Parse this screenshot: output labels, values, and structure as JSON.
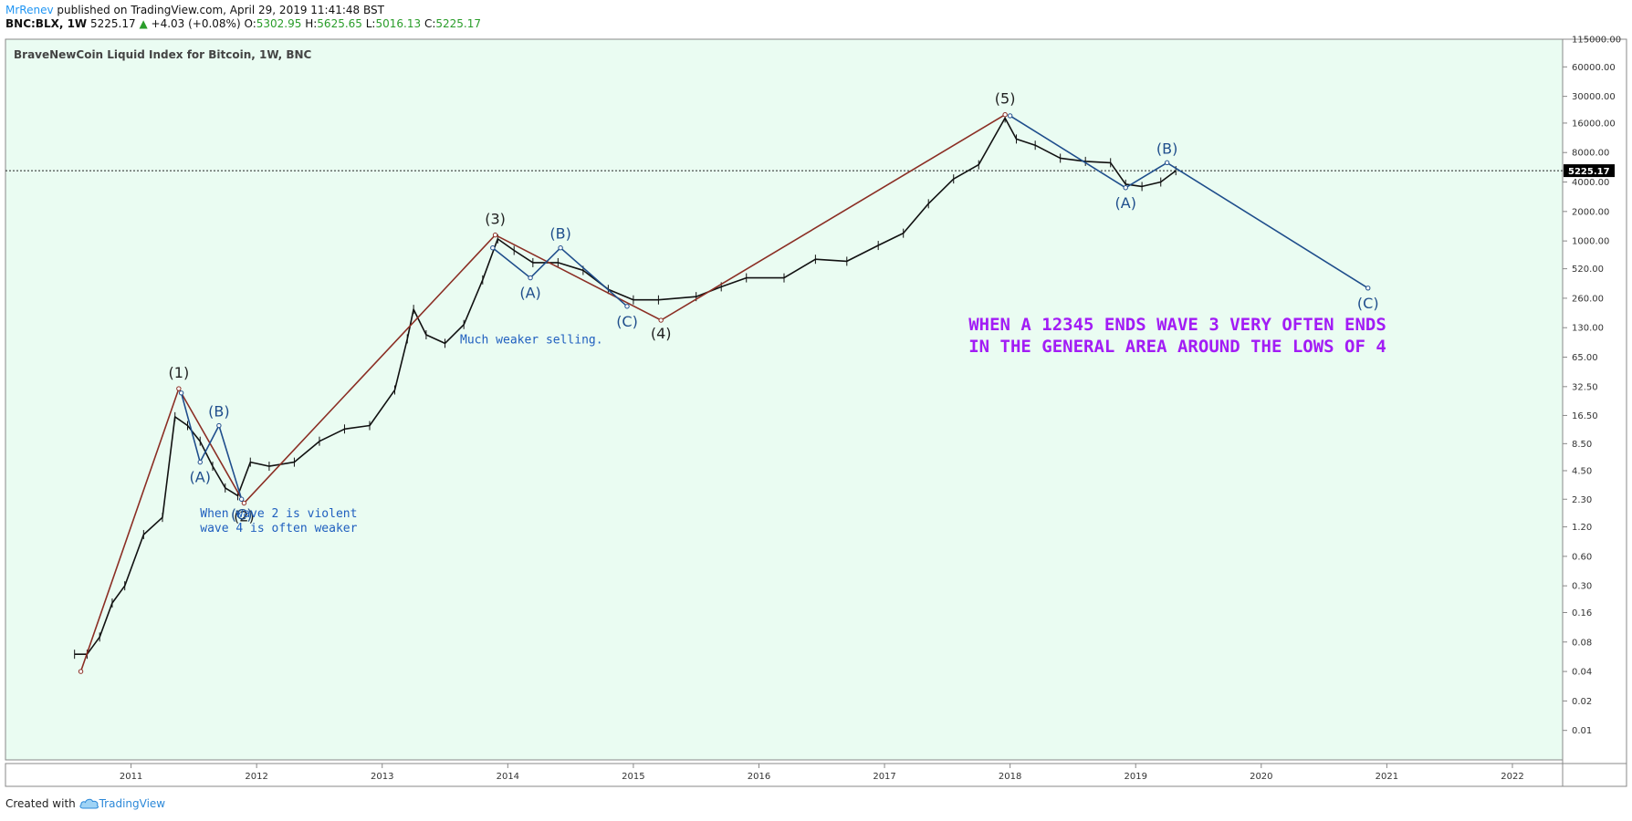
{
  "header": {
    "author": "MrRenev",
    "published": " published on TradingView.com, April 29, 2019 11:41:48 BST",
    "symbol": "BNC:BLX, 1W",
    "last": "5225.17",
    "change": "+4.03 (+0.08%)",
    "o_label": "O:",
    "o_value": "5302.95",
    "h_label": "H:",
    "h_value": "5625.65",
    "l_label": "L:",
    "l_value": "5016.13",
    "c_label": "C:",
    "c_value": "5225.17"
  },
  "footer": {
    "created_with": "Created with",
    "brand": "TradingView"
  },
  "colors": {
    "background": "#eafcf2",
    "impulse": "#8b2e24",
    "correction": "#1f4e8c",
    "note_text": "#1f5fbf",
    "headline_text": "#a21cf5",
    "price_tag": "#000000"
  },
  "chart_data": {
    "type": "line",
    "title": "BraveNewCoin Liquid Index for Bitcoin, 1W, BNC",
    "y_scale": "log",
    "ylim": [
      0.005,
      115000
    ],
    "xlim": [
      2010.0,
      2022.4
    ],
    "x_ticks": [
      "2011",
      "2012",
      "2013",
      "2014",
      "2015",
      "2016",
      "2017",
      "2018",
      "2019",
      "2020",
      "2021",
      "2022"
    ],
    "y_ticks": [
      "115000.00",
      "60000.00",
      "30000.00",
      "16000.00",
      "8000.00",
      "4000.00",
      "2000.00",
      "1000.00",
      "520.00",
      "260.00",
      "130.00",
      "65.00",
      "32.50",
      "16.50",
      "8.50",
      "4.50",
      "2.30",
      "1.20",
      "0.60",
      "0.30",
      "0.16",
      "0.08",
      "0.04",
      "0.02",
      "0.01"
    ],
    "last_price": 5225.17,
    "price_series": {
      "name": "BNC:BLX",
      "x": [
        2010.55,
        2010.65,
        2010.75,
        2010.85,
        2010.95,
        2011.1,
        2011.25,
        2011.35,
        2011.45,
        2011.55,
        2011.65,
        2011.75,
        2011.85,
        2011.95,
        2012.1,
        2012.3,
        2012.5,
        2012.7,
        2012.9,
        2013.1,
        2013.2,
        2013.25,
        2013.35,
        2013.5,
        2013.65,
        2013.8,
        2013.92,
        2014.05,
        2014.2,
        2014.4,
        2014.6,
        2014.8,
        2015.0,
        2015.2,
        2015.5,
        2015.7,
        2015.9,
        2016.2,
        2016.45,
        2016.7,
        2016.95,
        2017.15,
        2017.35,
        2017.55,
        2017.75,
        2017.96,
        2018.05,
        2018.2,
        2018.4,
        2018.6,
        2018.8,
        2018.92,
        2019.05,
        2019.2,
        2019.32
      ],
      "values": [
        0.06,
        0.06,
        0.09,
        0.2,
        0.3,
        1.0,
        1.5,
        16.0,
        13.0,
        9.0,
        5.0,
        3.0,
        2.5,
        5.5,
        5.0,
        5.5,
        9.0,
        12.0,
        13.0,
        30.0,
        100.0,
        200.0,
        110.0,
        90.0,
        140.0,
        400.0,
        1050.0,
        800.0,
        600.0,
        600.0,
        500.0,
        320.0,
        250.0,
        250.0,
        270.0,
        340.0,
        420.0,
        420.0,
        650.0,
        620.0,
        900.0,
        1200.0,
        2400.0,
        4300.0,
        6000.0,
        18000.0,
        11000.0,
        9500.0,
        7000.0,
        6500.0,
        6300.0,
        3800.0,
        3600.0,
        4000.0,
        5225.0
      ]
    },
    "impulse_waves": [
      {
        "label": "(1)",
        "x": 2011.38,
        "y": 31.0
      },
      {
        "label": "(2)",
        "x": 2011.9,
        "y": 2.1
      },
      {
        "label": "(3)",
        "x": 2013.9,
        "y": 1150.0
      },
      {
        "label": "(4)",
        "x": 2015.22,
        "y": 155.0
      },
      {
        "label": "(5)",
        "x": 2017.96,
        "y": 19500.0
      }
    ],
    "impulse_start": {
      "x": 2010.6,
      "y": 0.04
    },
    "corrections": [
      {
        "points": [
          {
            "x": 2011.4,
            "y": 28.0
          },
          {
            "x": 2011.55,
            "y": 5.5
          },
          {
            "x": 2011.7,
            "y": 13.0
          },
          {
            "x": 2011.88,
            "y": 2.3
          }
        ],
        "labels": [
          "(A)",
          "(B)",
          "(C)"
        ]
      },
      {
        "points": [
          {
            "x": 2013.88,
            "y": 850.0
          },
          {
            "x": 2014.18,
            "y": 420.0
          },
          {
            "x": 2014.42,
            "y": 850.0
          },
          {
            "x": 2014.95,
            "y": 215.0
          }
        ],
        "labels": [
          "(A)",
          "(B)",
          "(C)"
        ]
      },
      {
        "points": [
          {
            "x": 2018.0,
            "y": 19000.0
          },
          {
            "x": 2018.92,
            "y": 3500.0
          },
          {
            "x": 2019.25,
            "y": 6300.0
          },
          {
            "x": 2020.85,
            "y": 330.0
          }
        ],
        "labels": [
          "(A)",
          "(B)",
          "(C)"
        ]
      }
    ],
    "annotations": [
      {
        "lines": [
          "When wave 2 is violent",
          "wave 4 is often weaker"
        ],
        "x": 2011.55,
        "y": 1.5
      },
      {
        "lines": [
          "Much weaker selling."
        ],
        "x": 2013.62,
        "y": 90.0
      }
    ],
    "headline": {
      "lines": [
        "WHEN A 12345 ENDS WAVE 3 VERY OFTEN ENDS",
        "IN THE GENERAL AREA AROUND THE LOWS OF 4"
      ]
    }
  }
}
